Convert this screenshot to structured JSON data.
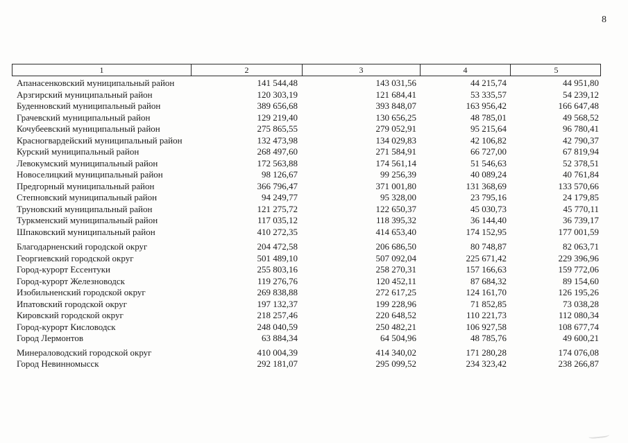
{
  "page": {
    "number": "8"
  },
  "table": {
    "header": [
      "1",
      "2",
      "3",
      "4",
      "5"
    ],
    "groups": [
      {
        "name": "municipal-districts",
        "rows": [
          {
            "name": "Апанасенковский муниципальный район",
            "values": [
              "141 544,48",
              "143 031,56",
              "44 215,74",
              "44 951,80"
            ]
          },
          {
            "name": "Арзгирский муниципальный район",
            "values": [
              "120 303,19",
              "121 684,41",
              "53 335,57",
              "54 239,12"
            ]
          },
          {
            "name": "Буденновский муниципальный район",
            "values": [
              "389 656,68",
              "393 848,07",
              "163 956,42",
              "166 647,48"
            ]
          },
          {
            "name": "Грачевский муниципальный район",
            "values": [
              "129 219,40",
              "130 656,25",
              "48 785,01",
              "49 568,52"
            ]
          },
          {
            "name": "Кочубеевский муниципальный район",
            "values": [
              "275 865,55",
              "279 052,91",
              "95 215,64",
              "96 780,41"
            ]
          },
          {
            "name": "Красногвардейский муниципальный район",
            "values": [
              "132 473,98",
              "134 029,83",
              "42 106,82",
              "42 790,37"
            ]
          },
          {
            "name": "Курский муниципальный район",
            "values": [
              "268 497,60",
              "271 584,91",
              "66 727,00",
              "67 819,94"
            ]
          },
          {
            "name": "Левокумский муниципальный район",
            "values": [
              "172 563,88",
              "174 561,14",
              "51 546,63",
              "52 378,51"
            ]
          },
          {
            "name": "Новоселицкий муниципальный район",
            "values": [
              "98 126,67",
              "99 256,39",
              "40 089,24",
              "40 761,84"
            ]
          },
          {
            "name": "Предгорный муниципальный район",
            "values": [
              "366 796,47",
              "371 001,80",
              "131 368,69",
              "133 570,66"
            ]
          },
          {
            "name": "Степновский муниципальный район",
            "values": [
              "94 249,77",
              "95 328,00",
              "23 795,16",
              "24 179,85"
            ]
          },
          {
            "name": "Труновский муниципальный район",
            "values": [
              "121 275,72",
              "122 650,37",
              "45 030,73",
              "45 770,11"
            ]
          },
          {
            "name": "Туркменский муниципальный район",
            "values": [
              "117 035,12",
              "118 395,32",
              "36 144,40",
              "36 739,17"
            ]
          },
          {
            "name": "Шпаковский муниципальный район",
            "values": [
              "410 272,35",
              "414 653,40",
              "174 152,95",
              "177 001,59"
            ]
          }
        ]
      },
      {
        "name": "city-okrugs",
        "rows": [
          {
            "name": "Благодарненский городской округ",
            "values": [
              "204 472,58",
              "206 686,50",
              "80 748,87",
              "82 063,71"
            ]
          },
          {
            "name": "Георгиевский городской округ",
            "values": [
              "501 489,10",
              "507 092,04",
              "225 671,42",
              "229 396,96"
            ]
          },
          {
            "name": "Город-курорт Ессентуки",
            "values": [
              "255 803,16",
              "258 270,31",
              "157 166,63",
              "159 772,06"
            ]
          },
          {
            "name": "Город-курорт Железноводск",
            "values": [
              "119 276,76",
              "120 452,11",
              "87 684,32",
              "89 154,60"
            ]
          },
          {
            "name": "Изобильненский городской округ",
            "values": [
              "269 838,88",
              "272 617,25",
              "124 161,70",
              "126 195,26"
            ]
          },
          {
            "name": "Ипатовский городской округ",
            "values": [
              "197 132,37",
              "199 228,96",
              "71 852,85",
              "73 038,28"
            ]
          },
          {
            "name": "Кировский городской округ",
            "values": [
              "218 257,46",
              "220 648,52",
              "110 221,73",
              "112 080,34"
            ]
          },
          {
            "name": "Город-курорт Кисловодск",
            "values": [
              "248 040,59",
              "250 482,21",
              "106 927,58",
              "108 677,74"
            ]
          },
          {
            "name": "Город Лермонтов",
            "values": [
              "63 884,34",
              "64 504,96",
              "48 785,76",
              "49 600,21"
            ]
          },
          {
            "name": "Минераловодский городской округ",
            "gap_before": true,
            "values": [
              "410 004,39",
              "414 340,02",
              "171 280,28",
              "174 076,08"
            ]
          },
          {
            "name": "Город Невинномысск",
            "values": [
              "292 181,07",
              "295 099,52",
              "234 323,42",
              "238 266,87"
            ]
          }
        ]
      }
    ]
  }
}
